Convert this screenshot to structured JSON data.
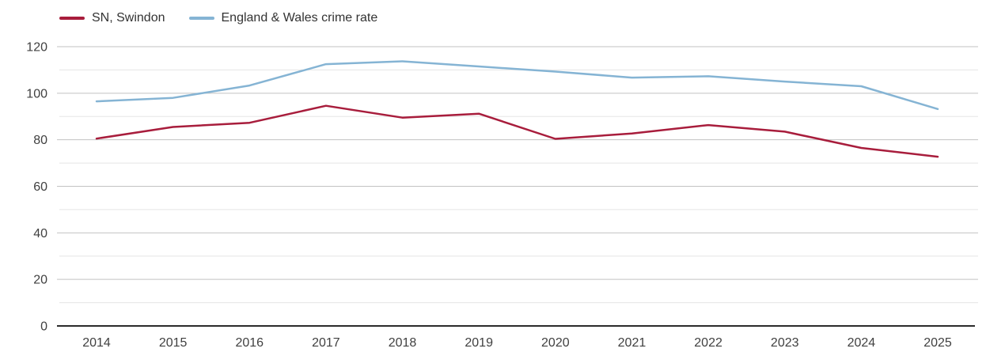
{
  "legend": {
    "items": [
      {
        "label": "SN, Swindon",
        "color": "#a81d3c"
      },
      {
        "label": "England & Wales crime rate",
        "color": "#85b4d4"
      }
    ]
  },
  "chart_data": {
    "type": "line",
    "title": "",
    "xlabel": "",
    "ylabel": "",
    "x": [
      2014,
      2015,
      2016,
      2017,
      2018,
      2019,
      2020,
      2021,
      2022,
      2023,
      2024,
      2025
    ],
    "series": [
      {
        "name": "SN, Swindon",
        "color": "#a81d3c",
        "values": [
          80.5,
          85.5,
          87.3,
          94.6,
          89.5,
          91.2,
          80.4,
          82.7,
          86.3,
          83.5,
          76.5,
          72.7
        ]
      },
      {
        "name": "England & Wales crime rate",
        "color": "#85b4d4",
        "values": [
          96.5,
          98,
          103.3,
          112.5,
          113.7,
          111.5,
          109.3,
          106.7,
          107.3,
          105,
          103,
          93.2
        ]
      }
    ],
    "ylim": [
      0,
      120
    ],
    "yticks": [
      0,
      20,
      40,
      60,
      80,
      100,
      120
    ],
    "minor_yticks": [
      10,
      30,
      50,
      70,
      90,
      110
    ],
    "grid": true,
    "legend_position": "top-left"
  },
  "style": {
    "major_grid_color": "#c2c2c2",
    "minor_grid_color": "#e5e5e5",
    "axis_color": "#2b2b2b",
    "tick_label_color": "#404040",
    "line_width": 2.5
  }
}
